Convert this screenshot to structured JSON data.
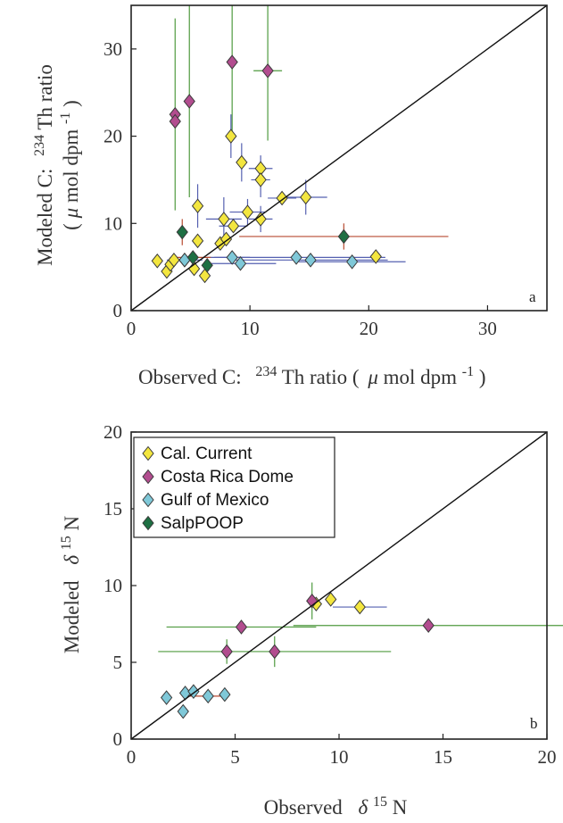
{
  "colors": {
    "cal_current": "#f3e63f",
    "costa_rica": "#b24d8f",
    "gulf_mexico": "#7fc8d8",
    "salppoop": "#1e6f43",
    "err_blue": "#5560b0",
    "err_green": "#4f9a3f",
    "err_red": "#b74a30",
    "err_brown": "#9a5a2a"
  },
  "chart_data": [
    {
      "type": "scatter",
      "panel_label": "a",
      "xlim": [
        0,
        35
      ],
      "ylim": [
        0,
        35
      ],
      "xticks": [
        "0",
        "10",
        "20",
        "30"
      ],
      "yticks": [
        "0",
        "10",
        "20",
        "30"
      ],
      "xlabel_parts": [
        "Observed C:",
        "234",
        "Th ratio (",
        "μ",
        "mol dpm",
        "-1",
        ")"
      ],
      "ylabel_line1_parts": [
        "Modeled C:",
        "234",
        "Th ratio"
      ],
      "ylabel_line2_parts": [
        "(",
        "μ",
        "mol dpm",
        "-1",
        ")"
      ],
      "one_to_one": true,
      "series": [
        {
          "name": "Cal. Current",
          "color_key": "cal_current",
          "err_color_key": "err_blue",
          "points": [
            {
              "x": 2.2,
              "y": 5.7
            },
            {
              "x": 3.0,
              "y": 4.5
            },
            {
              "x": 3.3,
              "y": 5.3
            },
            {
              "x": 3.6,
              "y": 5.8
            },
            {
              "x": 4.5,
              "y": 5.8
            },
            {
              "x": 5.3,
              "y": 4.8
            },
            {
              "x": 5.6,
              "y": 8.0
            },
            {
              "x": 5.6,
              "y": 12.0,
              "yerr": 2.5
            },
            {
              "x": 6.2,
              "y": 4.0
            },
            {
              "x": 7.5,
              "y": 7.7
            },
            {
              "x": 7.8,
              "y": 10.5,
              "xerr": 1.5,
              "yerr": 2.5
            },
            {
              "x": 8.0,
              "y": 8.2
            },
            {
              "x": 8.4,
              "y": 20.0,
              "yerr": 2.5
            },
            {
              "x": 8.6,
              "y": 9.7,
              "xerr": 1.2
            },
            {
              "x": 9.3,
              "y": 17.0,
              "yerr": 2.2
            },
            {
              "x": 9.8,
              "y": 11.3,
              "xerr": 1.5,
              "yerr": 1.5
            },
            {
              "x": 10.9,
              "y": 16.3,
              "xerr": 1.0,
              "yerr": 1.5
            },
            {
              "x": 10.9,
              "y": 15.0,
              "xerr": 0.8,
              "yerr": 2.0
            },
            {
              "x": 10.9,
              "y": 10.5,
              "xerr": 1.0,
              "yerr": 1.5
            },
            {
              "x": 12.7,
              "y": 12.9,
              "xerr": 1.2
            },
            {
              "x": 14.7,
              "y": 13.0,
              "xerr": 1.8,
              "yerr": 2.0
            },
            {
              "x": 20.6,
              "y": 6.2
            }
          ]
        },
        {
          "name": "Costa Rica Dome",
          "color_key": "costa_rica",
          "err_color_key": "err_green",
          "points": [
            {
              "x": 3.7,
              "y": 22.5,
              "yerr": 11.0
            },
            {
              "x": 3.7,
              "y": 21.7
            },
            {
              "x": 4.9,
              "y": 24.0,
              "yerr": 11.0
            },
            {
              "x": 8.5,
              "y": 28.5,
              "yerr": 8.0
            },
            {
              "x": 11.5,
              "y": 27.5,
              "xerr": 1.2,
              "yerr": 8.0
            }
          ]
        },
        {
          "name": "Gulf of Mexico",
          "color_key": "gulf_mexico",
          "err_color_key": "err_blue",
          "points": [
            {
              "x": 4.5,
              "y": 5.8,
              "xerr": 1.5
            },
            {
              "x": 8.5,
              "y": 6.1,
              "xerr": 1.5
            },
            {
              "x": 9.2,
              "y": 5.4,
              "xerr": 3.0
            },
            {
              "x": 13.9,
              "y": 6.1,
              "xerr": 7.5
            },
            {
              "x": 15.1,
              "y": 5.8,
              "xerr": 6.5
            },
            {
              "x": 18.6,
              "y": 5.6,
              "xerr": 4.5
            }
          ]
        },
        {
          "name": "SalpPOOP",
          "color_key": "salppoop",
          "err_color_key": "err_red",
          "points": [
            {
              "x": 4.3,
              "y": 9.0,
              "yerr": 1.5
            },
            {
              "x": 5.2,
              "y": 6.1,
              "xerr": 1.5
            },
            {
              "x": 6.4,
              "y": 5.2
            },
            {
              "x": 17.9,
              "y": 8.5,
              "xerr": 8.8,
              "yerr": 1.5
            }
          ]
        }
      ]
    },
    {
      "type": "scatter",
      "panel_label": "b",
      "xlim": [
        0,
        20
      ],
      "ylim": [
        0,
        20
      ],
      "xticks": [
        "0",
        "5",
        "10",
        "15",
        "20"
      ],
      "yticks": [
        "0",
        "5",
        "10",
        "15",
        "20"
      ],
      "xlabel_parts": [
        "Observed",
        "δ",
        "15",
        "N"
      ],
      "ylabel_parts": [
        "Modeled",
        "δ",
        "15",
        "N"
      ],
      "one_to_one": true,
      "legend": {
        "placement": "top-left",
        "entries": [
          "Cal. Current",
          "Costa Rica Dome",
          "Gulf of Mexico",
          "SalpPOOP"
        ]
      },
      "series": [
        {
          "name": "Cal. Current",
          "color_key": "cal_current",
          "err_color_key": "err_blue",
          "points": [
            {
              "x": 8.9,
              "y": 8.8
            },
            {
              "x": 9.6,
              "y": 9.1
            },
            {
              "x": 11.0,
              "y": 8.6,
              "xerr": 1.3
            }
          ]
        },
        {
          "name": "Costa Rica Dome",
          "color_key": "costa_rica",
          "err_color_key": "err_green",
          "points": [
            {
              "x": 4.6,
              "y": 5.7,
              "yerr": 0.8
            },
            {
              "x": 5.3,
              "y": 7.3,
              "xerr": 3.6
            },
            {
              "x": 6.9,
              "y": 5.7,
              "xerr": 5.6,
              "yerr": 1.0
            },
            {
              "x": 8.7,
              "y": 9.0,
              "yerr": 1.2
            },
            {
              "x": 14.3,
              "y": 7.4,
              "xerr": 6.5
            }
          ]
        },
        {
          "name": "Gulf of Mexico",
          "color_key": "gulf_mexico",
          "err_color_key": "err_red",
          "points": [
            {
              "x": 1.7,
              "y": 2.7
            },
            {
              "x": 2.5,
              "y": 1.8
            },
            {
              "x": 2.6,
              "y": 3.0
            },
            {
              "x": 3.0,
              "y": 3.1
            },
            {
              "x": 3.7,
              "y": 2.8,
              "xerr": 0.9
            },
            {
              "x": 4.5,
              "y": 2.9
            }
          ]
        }
      ]
    }
  ]
}
